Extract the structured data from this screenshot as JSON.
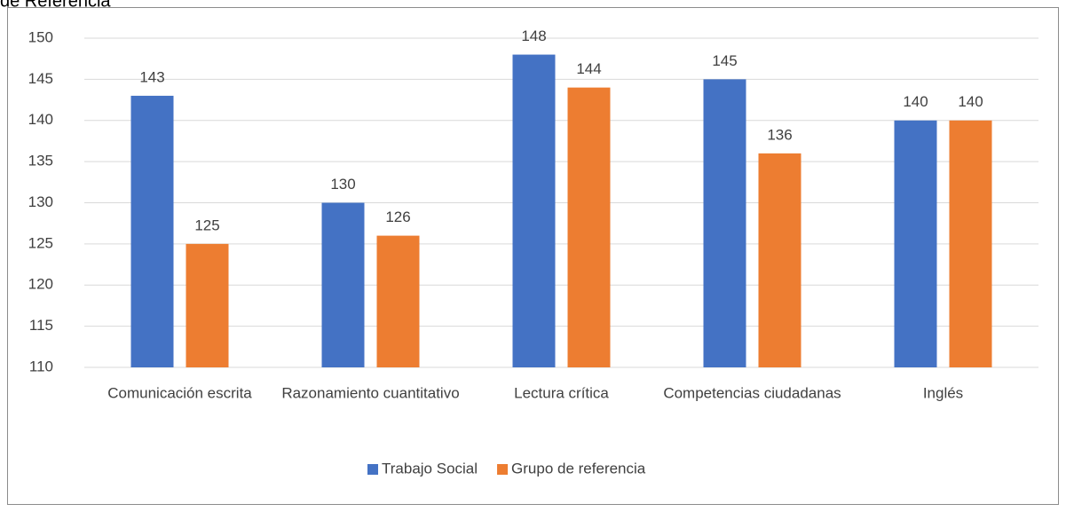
{
  "chart_data": {
    "type": "bar",
    "title": "de Referencia",
    "categories": [
      "Comunicación escrita",
      "Razonamiento cuantitativo",
      "Lectura crítica",
      "Competencias ciudadanas",
      "Inglés"
    ],
    "series": [
      {
        "name": "Trabajo Social",
        "color": "#4472c4",
        "values": [
          143,
          130,
          148,
          145,
          140
        ]
      },
      {
        "name": "Grupo de referencia",
        "color": "#ed7d31",
        "values": [
          125,
          126,
          144,
          136,
          140
        ]
      }
    ],
    "ylim": [
      110,
      150
    ],
    "yticks": [
      110,
      115,
      120,
      125,
      130,
      135,
      140,
      145,
      150
    ],
    "grid": true,
    "legend": "bottom"
  }
}
